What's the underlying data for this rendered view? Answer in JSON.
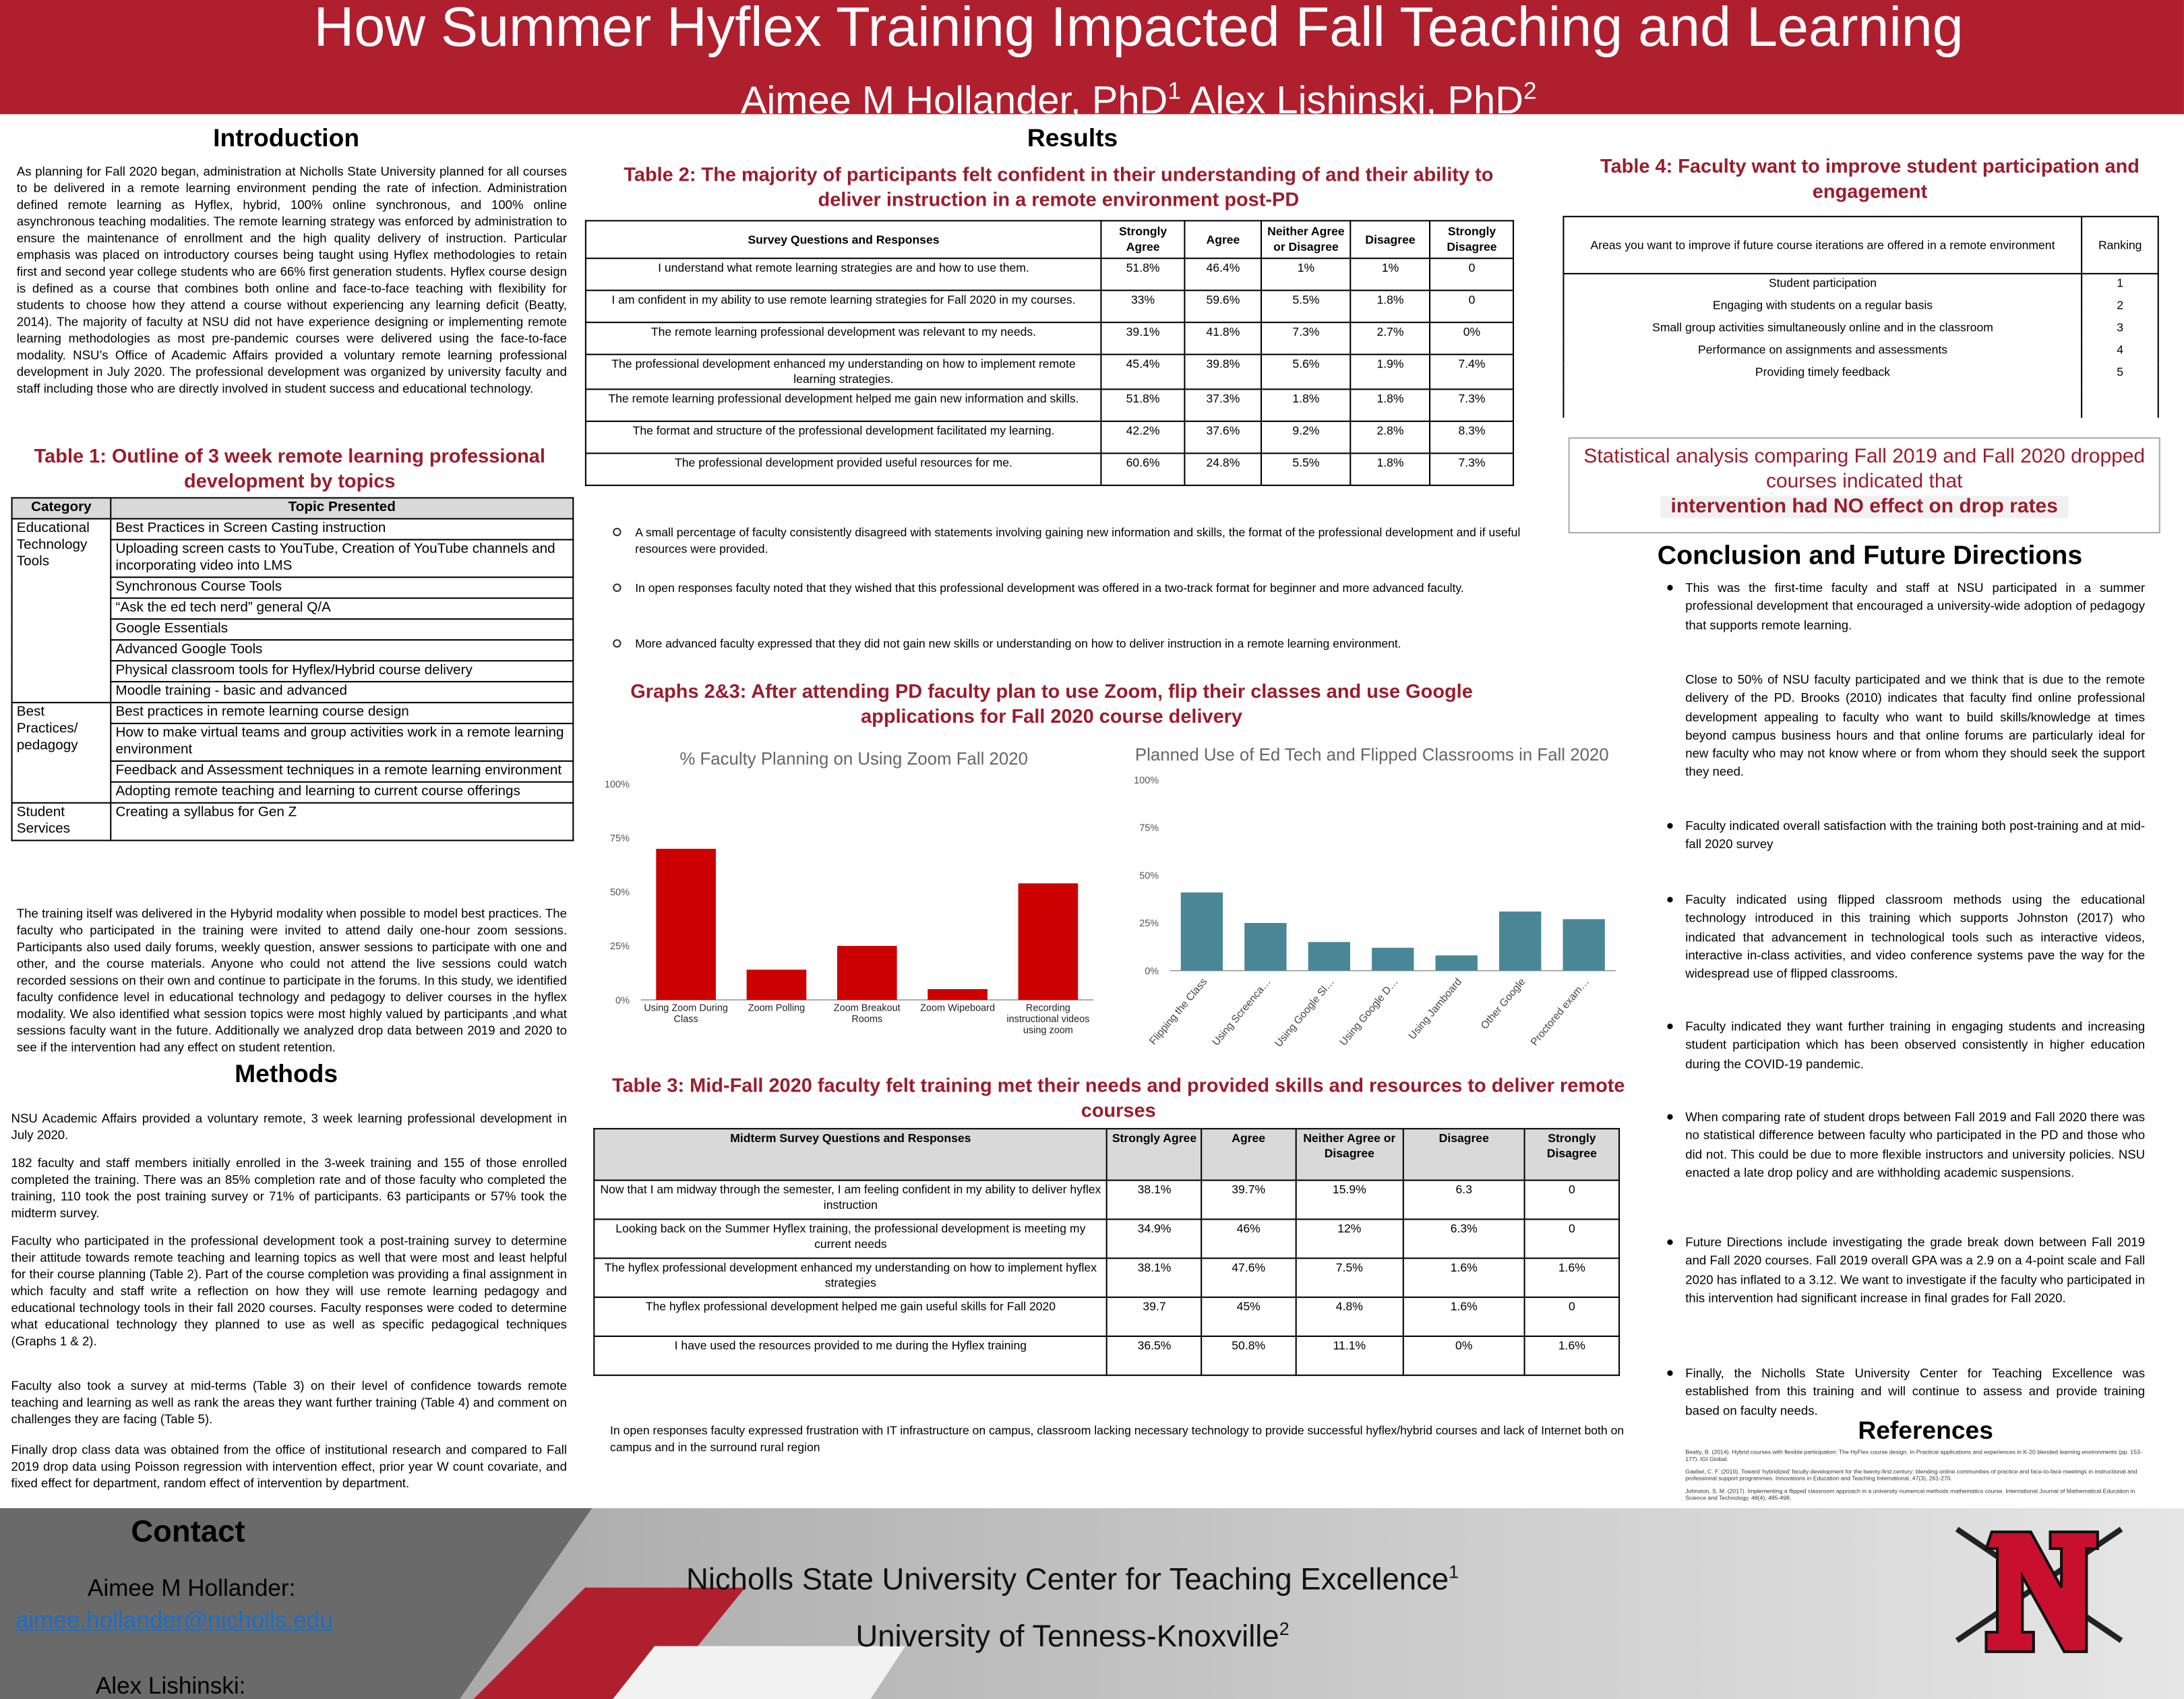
{
  "header": {
    "title": "How Summer Hyflex Training Impacted Fall Teaching and Learning",
    "authors": [
      {
        "name": "Aimee M Hollander, PhD",
        "affiliation": "1"
      },
      {
        "name": "Alex Lishinski, PhD",
        "affiliation": "2"
      }
    ]
  },
  "introduction": {
    "heading": "Introduction",
    "text": "As planning for Fall 2020 began, administration at Nicholls State University planned for all courses to be delivered in a remote learning environment pending the rate of infection. Administration defined remote learning as Hyflex, hybrid, 100% online synchronous, and 100% online asynchronous teaching modalities. The remote learning strategy was enforced by administration to ensure the maintenance of enrollment and the high quality delivery of instruction. Particular emphasis was placed on introductory courses being taught using Hyflex methodologies to retain first and second year college students who are 66% first generation students. Hyflex course design is defined as a course that combines both online and face-to-face teaching with flexibility for students to choose how they attend a course without experiencing any learning deficit (Beatty, 2014). The majority of faculty at NSU did not have experience designing or implementing remote learning methodologies as most pre-pandemic courses were delivered using the face-to-face modality. NSU’s Office of Academic Affairs provided a voluntary remote learning professional development in July 2020. The professional development was organized by university faculty and staff including those who are directly involved in student success and educational technology.",
    "training": "The training itself was delivered in the Hybyrid modality when possible to model best practices. The faculty who participated in the training were invited to attend daily one-hour zoom sessions. Participants also used daily forums, weekly question, answer sessions to participate with one and other, and the course materials. Anyone who could not attend the live sessions could watch recorded sessions on their own and continue to participate in the forums. In this study, we identified faculty confidence level in educational technology and pedagogy to deliver courses in the hyflex modality. We also identified what session topics were most highly valued by participants ,and what sessions faculty want in the future. Additionally we analyzed drop data between 2019 and 2020 to see if the intervention had any effect on student retention."
  },
  "table1": {
    "title": "Table 1: Outline of 3 week remote learning professional development by topics",
    "headers": [
      "Category",
      "Topic Presented"
    ],
    "groups": [
      {
        "category": "Educational Technology Tools",
        "topics": [
          "Best Practices in Screen Casting instruction",
          "Uploading screen casts to YouTube, Creation of YouTube channels and incorporating video into LMS",
          "Synchronous Course Tools",
          "“Ask the ed tech nerd” general Q/A",
          "Google Essentials",
          "Advanced Google Tools",
          "Physical classroom tools for Hyflex/Hybrid  course delivery",
          "Moodle training - basic and advanced"
        ]
      },
      {
        "category": "Best Practices/ pedagogy",
        "topics": [
          "Best practices in remote learning course  design",
          "How to make virtual teams and group activities work in a remote learning environment",
          "Feedback and Assessment techniques in a remote learning environment",
          "Adopting remote teaching and learning to current course offerings"
        ]
      },
      {
        "category": "Student Services",
        "topics": [
          "Creating a syllabus for Gen Z"
        ]
      }
    ]
  },
  "methods": {
    "heading": "Methods",
    "paragraphs": [
      "NSU Academic Affairs provided a voluntary remote, 3 week learning professional development in July 2020.",
      "182 faculty and staff members initially enrolled in the 3-week training and 155 of those enrolled completed the training. There was an 85% completion rate and of those faculty who completed the training, 110 took the post training survey or 71% of participants. 63 participants or 57% took the midterm survey.",
      "Faculty who participated in the professional development took a post-training survey to determine their attitude towards remote teaching and learning topics as well that were most and least helpful for their course planning (Table 2). Part of the course completion was providing a final assignment in which faculty and staff write a reflection on how they will use remote learning pedagogy and educational technology tools in their fall 2020 courses. Faculty responses were coded to determine what educational technology they planned to use as well as specific pedagogical techniques (Graphs 1 & 2).",
      "Faculty also took a survey at mid-terms (Table 3) on their level of confidence towards remote teaching and learning as well as rank the areas they want further training (Table 4) and comment on challenges they are facing (Table 5).",
      "Finally drop class data was obtained from the office of institutional research and compared to Fall 2019 drop data using Poisson regression with intervention effect, prior year W count covariate, and fixed effect for department, random effect of intervention by department."
    ]
  },
  "results": {
    "heading": "Results",
    "bullets": [
      "A small percentage of faculty consistently disagreed with statements involving gaining new information and skills, the format of the professional development and if useful resources were provided.",
      "In open responses faculty noted that they wished that this professional development was offered in a two-track format for beginner and more advanced faculty.",
      "More advanced faculty expressed that they did not gain new skills or understanding on how to deliver instruction in a remote learning environment."
    ],
    "graphs_title": "Graphs 2&3: After attending PD faculty plan to use Zoom, flip their classes and use Google applications for Fall 2020 course delivery"
  },
  "table2": {
    "title": "Table 2: The majority of participants felt confident in their understanding of and their ability to deliver instruction in a remote environment post-PD",
    "headers": [
      "Survey Questions and Responses",
      "Strongly Agree",
      "Agree",
      "Neither Agree or Disagree",
      "Disagree",
      "Strongly Disagree"
    ],
    "rows": [
      [
        "I understand what remote learning strategies are and how to use them.",
        "51.8%",
        "46.4%",
        "1%",
        "1%",
        "0"
      ],
      [
        "I am confident in my ability to use remote learning strategies for Fall 2020 in my courses.",
        "33%",
        "59.6%",
        "5.5%",
        "1.8%",
        "0"
      ],
      [
        "The remote learning professional development was relevant to my needs.",
        "39.1%",
        "41.8%",
        "7.3%",
        "2.7%",
        "0%"
      ],
      [
        "The professional development enhanced my understanding on how to implement remote learning strategies.",
        "45.4%",
        "39.8%",
        "5.6%",
        "1.9%",
        "7.4%"
      ],
      [
        "The remote learning  professional development helped me gain new information and skills.",
        "51.8%",
        "37.3%",
        "1.8%",
        "1.8%",
        "7.3%"
      ],
      [
        "The format and structure of the professional development facilitated my learning.",
        "42.2%",
        "37.6%",
        "9.2%",
        "2.8%",
        "8.3%"
      ],
      [
        "The professional development provided useful resources for me.",
        "60.6%",
        "24.8%",
        "5.5%",
        "1.8%",
        "7.3%"
      ]
    ]
  },
  "chart_data": [
    {
      "type": "bar",
      "title": "% Faculty Planning on Using Zoom Fall 2020",
      "categories": [
        "Using Zoom During Class",
        "Zoom Polling",
        "Zoom Breakout Rooms",
        "Zoom Wipeboard",
        "Recording instructional videos using zoom"
      ],
      "values": [
        70,
        14,
        25,
        5,
        54
      ],
      "color": "#cc0000",
      "ylim": [
        0,
        100
      ],
      "yticks": [
        {
          "value": 0,
          "label": "0%"
        },
        {
          "value": 25,
          "label": "25%"
        },
        {
          "value": 50,
          "label": "50%"
        },
        {
          "value": 75,
          "label": "75%"
        },
        {
          "value": 100,
          "label": "100%"
        }
      ]
    },
    {
      "type": "bar",
      "title": "Planned Use of Ed Tech and Flipped Classrooms in Fall 2020",
      "categories": [
        "Flipping the Class",
        "Using Screenca…",
        "Using Google Sl…",
        "Using Google D…",
        "Using Jamboard",
        "Other Google",
        "Proctored exam…"
      ],
      "values": [
        41,
        25,
        15,
        12,
        8,
        31,
        27
      ],
      "color": "#4a8796",
      "ylim": [
        0,
        100
      ],
      "yticks": [
        {
          "value": 0,
          "label": "0%"
        },
        {
          "value": 25,
          "label": "25%"
        },
        {
          "value": 50,
          "label": "50%"
        },
        {
          "value": 75,
          "label": "75%"
        },
        {
          "value": 100,
          "label": "100%"
        }
      ]
    }
  ],
  "table3": {
    "title": "Table 3: Mid-Fall 2020 faculty felt training met their needs and provided skills and resources to deliver remote courses",
    "headers": [
      "Midterm Survey Questions and Responses",
      "Strongly Agree",
      "Agree",
      "Neither Agree or Disagree",
      "Disagree",
      "Strongly Disagree"
    ],
    "rows": [
      [
        "Now that I am midway through the semester, I am feeling confident in my ability to deliver hyflex instruction",
        "38.1%",
        "39.7%",
        "15.9%",
        "6.3",
        "0"
      ],
      [
        "Looking back on the Summer Hyflex training, the professional development is meeting my current needs",
        "34.9%",
        "46%",
        "12%",
        "6.3%",
        "0"
      ],
      [
        "The hyflex professional development enhanced my understanding on how to implement hyflex strategies",
        "38.1%",
        "47.6%",
        "7.5%",
        "1.6%",
        "1.6%"
      ],
      [
        "The hyflex professional development helped me gain useful skills for Fall 2020",
        "39.7",
        "45%",
        "4.8%",
        "1.6%",
        "0"
      ],
      [
        "I have used the resources provided to me during the Hyflex training",
        "36.5%",
        "50.8%",
        "11.1%",
        "0%",
        "1.6%"
      ]
    ],
    "note": "In open responses faculty expressed frustration with IT infrastructure on campus, classroom lacking necessary technology to provide successful hyflex/hybrid courses and lack of Internet both on campus and in the surround rural region"
  },
  "table4": {
    "title": "Table 4: Faculty want to improve student participation and engagement",
    "headers": [
      "Areas you want to improve if future course iterations are offered in a remote environment",
      "Ranking"
    ],
    "rows": [
      [
        "Student participation",
        1
      ],
      [
        "Engaging with students on a regular basis",
        2
      ],
      [
        "Small group activities simultaneously online and in the classroom",
        3
      ],
      [
        "Performance on assignments and assessments",
        4
      ],
      [
        "Providing timely feedback",
        5
      ]
    ]
  },
  "stat_box": {
    "text": "Statistical analysis comparing Fall 2019 and Fall 2020 dropped courses indicated that",
    "highlight": "intervention had NO effect on drop rates"
  },
  "conclusion": {
    "heading": "Conclusion and Future Directions",
    "items": [
      "This was the first-time faculty and staff at NSU participated in a summer professional development that encouraged a university-wide adoption of pedagogy that supports remote learning.",
      "Close to 50% of NSU faculty participated and we think that is due to the remote delivery of the PD. Brooks (2010) indicates that faculty find online professional development appealing to faculty who want to build skills/knowledge at times beyond campus business hours and that online forums are particularly ideal for new faculty who may not know where or from whom they should seek the support they need.",
      "Faculty indicated overall satisfaction with the training both post-training and at mid-fall 2020 survey",
      "Faculty indicated using flipped classroom methods using the educational technology introduced in this training which supports Johnston (2017) who indicated that advancement in technological tools such as interactive videos, interactive in-class activities, and video conference systems pave the way for the widespread use of flipped classrooms.",
      "Faculty indicated they want further training in engaging students and increasing student participation which has been observed consistently in higher education during the COVID-19 pandemic.",
      "When comparing rate of student drops between Fall 2019 and Fall 2020 there was no statistical difference between faculty who participated in the PD and those who did not. This could be due to more flexible instructors and university policies. NSU enacted a late drop policy and are withholding academic suspensions.",
      "Future Directions include investigating the grade break down between Fall 2019 and Fall 2020 courses.  Fall 2019 overall GPA was a 2.9 on a 4-point scale and Fall 2020 has inflated to a 3.12.  We want to investigate if the faculty who participated in this intervention had significant increase in final grades for Fall 2020.",
      "Finally, the Nicholls State University Center for Teaching Excellence was established from this training and will continue to assess and provide training based on faculty needs."
    ]
  },
  "references": {
    "heading": "References",
    "items": [
      "Beatty, B. (2014). Hybrid courses with flexible participation: The HyFlex course design. In Practical applications and experiences in K-20 blended learning environments (pp. 153-177). IGI Global.",
      "Gaebel, C. F. (2010). Toward 'hybridized' faculty development for the twenty-first century: blending online communities of practice and face-to-face meetings in instructional and professional support programmes. Innovations in Education and Teaching International, 47(3), 261-270.",
      "Johnston, S. M. (2017). Implementing a flipped classroom approach in a university numerical methods mathematics course. International Journal of Mathematical Education in Science and Technology, 48(4), 485-498."
    ]
  },
  "footer": {
    "contact_heading": "Contact",
    "contacts": [
      {
        "name": "Aimee M Hollander:",
        "email": "aimee.hollander@nicholls.edu"
      },
      {
        "name": "Alex Lishinski:"
      }
    ],
    "affiliations": [
      {
        "name": "Nicholls State University Center for Teaching Excellence",
        "number": "1"
      },
      {
        "name": "University of Tenness-Knoxville",
        "number": "2"
      }
    ]
  }
}
